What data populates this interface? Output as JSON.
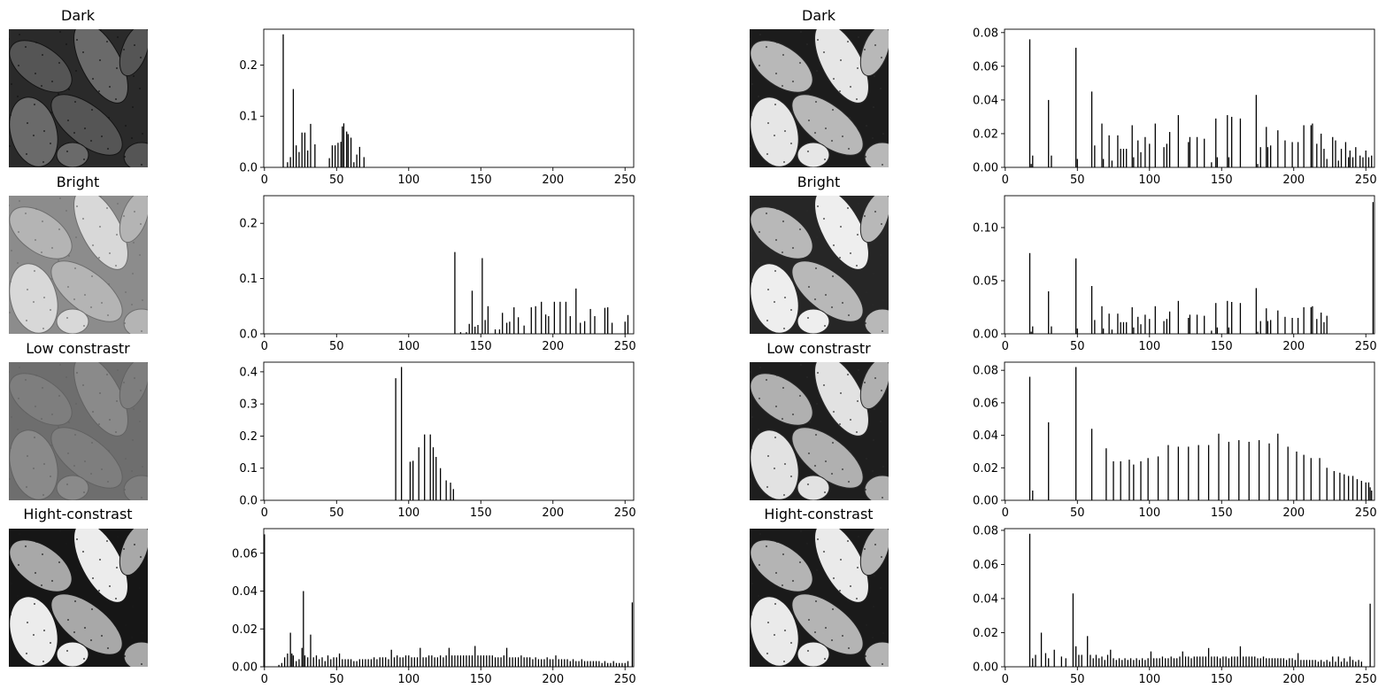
{
  "figure": {
    "row_titles": [
      "Dark",
      "Bright",
      "Low constrastr",
      "Hight-constrast"
    ]
  },
  "panels": [
    {
      "title": "Dark",
      "image": {
        "base": "#2a2a2a",
        "fg": "#555555",
        "hi": "#6a6a6a",
        "dots": "#141414"
      }
    },
    {
      "title": "Dark",
      "image": {
        "base": "#1c1c1c",
        "fg": "#b8b8b8",
        "hi": "#e6e6e6",
        "dots": "#2a2a2a"
      }
    },
    {
      "title": "Bright",
      "image": {
        "base": "#8c8c8c",
        "fg": "#b4b4b4",
        "hi": "#d8d8d8",
        "dots": "#6e6e6e"
      }
    },
    {
      "title": "Bright",
      "image": {
        "base": "#262626",
        "fg": "#b8b8b8",
        "hi": "#eeeeee",
        "dots": "#2a2a2a"
      }
    },
    {
      "title": "Low constrastr",
      "image": {
        "base": "#6e6e6e",
        "fg": "#7e7e7e",
        "hi": "#8a8a8a",
        "dots": "#626262"
      }
    },
    {
      "title": "Low constrastr",
      "image": {
        "base": "#1e1e1e",
        "fg": "#b0b0b0",
        "hi": "#e2e2e2",
        "dots": "#2a2a2a"
      }
    },
    {
      "title": "Hight-constrast",
      "image": {
        "base": "#161616",
        "fg": "#a8a8a8",
        "hi": "#ececec",
        "dots": "#1a1a1a"
      }
    },
    {
      "title": "Hight-constrast",
      "image": {
        "base": "#1a1a1a",
        "fg": "#b4b4b4",
        "hi": "#eaeaea",
        "dots": "#222222"
      }
    }
  ],
  "chart_data": [
    {
      "type": "bar",
      "title": "",
      "xlabel": "",
      "ylabel": "",
      "xlim": [
        0,
        255
      ],
      "ylim": [
        0,
        0.27
      ],
      "xticks": [
        0,
        50,
        100,
        150,
        200,
        250
      ],
      "yticks": [
        0.0,
        0.1,
        0.2
      ],
      "x": [
        13,
        16,
        18,
        20,
        22,
        24,
        26,
        28,
        30,
        32,
        35,
        45,
        47,
        49,
        51,
        53,
        54,
        55,
        57,
        58,
        60,
        62,
        64,
        66,
        69
      ],
      "values": [
        0.26,
        0.01,
        0.02,
        0.153,
        0.043,
        0.03,
        0.068,
        0.068,
        0.033,
        0.085,
        0.045,
        0.018,
        0.043,
        0.043,
        0.048,
        0.05,
        0.08,
        0.086,
        0.07,
        0.065,
        0.058,
        0.01,
        0.025,
        0.04,
        0.02
      ]
    },
    {
      "type": "bar",
      "title": "",
      "xlabel": "",
      "ylabel": "",
      "xlim": [
        0,
        255
      ],
      "ylim": [
        0,
        0.082
      ],
      "xticks": [
        0,
        50,
        100,
        150,
        200,
        250
      ],
      "yticks": [
        0.0,
        0.02,
        0.04,
        0.06,
        0.08
      ],
      "x": [
        17,
        18,
        19,
        30,
        32,
        49,
        50,
        60,
        62,
        67,
        68,
        72,
        74,
        78,
        80,
        82,
        84,
        88,
        89,
        92,
        94,
        97,
        100,
        104,
        110,
        112,
        114,
        120,
        127,
        128,
        133,
        138,
        143,
        146,
        147,
        154,
        155,
        157,
        163,
        174,
        175,
        177,
        181,
        182,
        184,
        189,
        194,
        199,
        203,
        207,
        212,
        213,
        216,
        219,
        221,
        223,
        227,
        229,
        231,
        233,
        236,
        238,
        239,
        241,
        243,
        246,
        248,
        250,
        252,
        254
      ],
      "values": [
        0.076,
        0.002,
        0.007,
        0.04,
        0.007,
        0.071,
        0.005,
        0.045,
        0.013,
        0.026,
        0.005,
        0.019,
        0.004,
        0.019,
        0.011,
        0.011,
        0.011,
        0.025,
        0.006,
        0.016,
        0.009,
        0.018,
        0.014,
        0.026,
        0.012,
        0.014,
        0.021,
        0.031,
        0.015,
        0.018,
        0.018,
        0.017,
        0.003,
        0.029,
        0.006,
        0.031,
        0.006,
        0.03,
        0.029,
        0.043,
        0.002,
        0.012,
        0.024,
        0.012,
        0.013,
        0.022,
        0.016,
        0.015,
        0.015,
        0.025,
        0.025,
        0.026,
        0.014,
        0.02,
        0.011,
        0.005,
        0.018,
        0.016,
        0.004,
        0.011,
        0.015,
        0.006,
        0.01,
        0.006,
        0.012,
        0.007,
        0.006,
        0.01,
        0.006,
        0.007
      ]
    },
    {
      "type": "bar",
      "title": "",
      "xlabel": "",
      "ylabel": "",
      "xlim": [
        0,
        255
      ],
      "ylim": [
        0,
        0.25
      ],
      "xticks": [
        0,
        50,
        100,
        150,
        200,
        250
      ],
      "yticks": [
        0.0,
        0.1,
        0.2
      ],
      "x": [
        132,
        136,
        140,
        142,
        144,
        146,
        148,
        151,
        153,
        155,
        160,
        163,
        165,
        168,
        170,
        173,
        176,
        180,
        185,
        188,
        192,
        195,
        197,
        201,
        205,
        209,
        212,
        216,
        219,
        222,
        226,
        229,
        236,
        238,
        241,
        250,
        252
      ],
      "values": [
        0.148,
        0.003,
        0.003,
        0.018,
        0.078,
        0.013,
        0.016,
        0.137,
        0.025,
        0.05,
        0.008,
        0.008,
        0.038,
        0.02,
        0.022,
        0.048,
        0.03,
        0.015,
        0.048,
        0.05,
        0.058,
        0.035,
        0.032,
        0.058,
        0.058,
        0.058,
        0.032,
        0.082,
        0.02,
        0.023,
        0.045,
        0.032,
        0.047,
        0.048,
        0.02,
        0.022,
        0.034
      ]
    },
    {
      "type": "bar",
      "title": "",
      "xlabel": "",
      "ylabel": "",
      "xlim": [
        0,
        255
      ],
      "ylim": [
        0,
        0.13
      ],
      "xticks": [
        0,
        50,
        100,
        150,
        200,
        250
      ],
      "yticks": [
        0.0,
        0.05,
        0.1
      ],
      "x": [
        17,
        18,
        19,
        30,
        32,
        49,
        50,
        60,
        62,
        67,
        68,
        72,
        74,
        78,
        80,
        82,
        84,
        88,
        89,
        92,
        94,
        97,
        100,
        104,
        110,
        112,
        114,
        120,
        127,
        128,
        133,
        138,
        143,
        146,
        147,
        154,
        155,
        157,
        163,
        174,
        175,
        177,
        181,
        182,
        184,
        189,
        194,
        199,
        203,
        207,
        212,
        213,
        216,
        219,
        221,
        223,
        255
      ],
      "values": [
        0.076,
        0.002,
        0.007,
        0.04,
        0.007,
        0.071,
        0.005,
        0.045,
        0.013,
        0.026,
        0.005,
        0.019,
        0.004,
        0.019,
        0.011,
        0.011,
        0.011,
        0.025,
        0.006,
        0.016,
        0.009,
        0.018,
        0.014,
        0.026,
        0.012,
        0.014,
        0.021,
        0.031,
        0.015,
        0.018,
        0.018,
        0.017,
        0.003,
        0.029,
        0.006,
        0.031,
        0.006,
        0.03,
        0.029,
        0.043,
        0.002,
        0.012,
        0.024,
        0.012,
        0.013,
        0.022,
        0.016,
        0.015,
        0.015,
        0.025,
        0.025,
        0.026,
        0.014,
        0.02,
        0.011,
        0.017,
        0.124
      ]
    },
    {
      "type": "bar",
      "title": "",
      "xlabel": "",
      "ylabel": "",
      "xlim": [
        0,
        255
      ],
      "ylim": [
        0,
        0.43
      ],
      "xticks": [
        0,
        50,
        100,
        150,
        200,
        250
      ],
      "yticks": [
        0.0,
        0.1,
        0.2,
        0.3,
        0.4
      ],
      "x": [
        91,
        95,
        101,
        103,
        107,
        111,
        115,
        117,
        119,
        122,
        126,
        129,
        131
      ],
      "values": [
        0.38,
        0.415,
        0.12,
        0.123,
        0.165,
        0.205,
        0.205,
        0.165,
        0.135,
        0.1,
        0.062,
        0.055,
        0.035
      ]
    },
    {
      "type": "bar",
      "title": "",
      "xlabel": "",
      "ylabel": "",
      "xlim": [
        0,
        255
      ],
      "ylim": [
        0,
        0.085
      ],
      "xticks": [
        0,
        50,
        100,
        150,
        200,
        250
      ],
      "yticks": [
        0.0,
        0.02,
        0.04,
        0.06,
        0.08
      ],
      "x": [
        17,
        19,
        30,
        49,
        60,
        70,
        75,
        80,
        86,
        89,
        94,
        99,
        106,
        113,
        120,
        127,
        134,
        141,
        148,
        155,
        162,
        169,
        176,
        183,
        189,
        196,
        202,
        207,
        212,
        218,
        223,
        228,
        232,
        235,
        238,
        241,
        244,
        247,
        250,
        252,
        253,
        254
      ],
      "values": [
        0.076,
        0.006,
        0.048,
        0.082,
        0.044,
        0.032,
        0.024,
        0.024,
        0.025,
        0.022,
        0.024,
        0.026,
        0.027,
        0.034,
        0.033,
        0.033,
        0.034,
        0.034,
        0.041,
        0.036,
        0.037,
        0.036,
        0.037,
        0.035,
        0.041,
        0.033,
        0.03,
        0.028,
        0.026,
        0.026,
        0.02,
        0.018,
        0.017,
        0.016,
        0.015,
        0.015,
        0.013,
        0.012,
        0.011,
        0.011,
        0.008,
        0.006
      ]
    },
    {
      "type": "bar",
      "title": "",
      "xlabel": "",
      "ylabel": "",
      "xlim": [
        0,
        255
      ],
      "ylim": [
        0,
        0.073
      ],
      "xticks": [
        0,
        50,
        100,
        150,
        200,
        250
      ],
      "yticks": [
        0.0,
        0.02,
        0.04,
        0.06
      ],
      "x": [
        0,
        10,
        12,
        14,
        16,
        18,
        19,
        20,
        22,
        24,
        26,
        27,
        28,
        30,
        32,
        34,
        36,
        38,
        40,
        42,
        44,
        46,
        48,
        50,
        52,
        54,
        56,
        58,
        60,
        62,
        64,
        66,
        68,
        70,
        72,
        74,
        76,
        78,
        80,
        82,
        84,
        86,
        88,
        90,
        92,
        94,
        96,
        98,
        100,
        102,
        104,
        106,
        108,
        110,
        112,
        114,
        116,
        118,
        120,
        122,
        124,
        126,
        128,
        130,
        132,
        134,
        136,
        138,
        140,
        142,
        144,
        146,
        148,
        150,
        152,
        154,
        156,
        158,
        160,
        162,
        164,
        166,
        168,
        170,
        172,
        174,
        176,
        178,
        180,
        182,
        184,
        186,
        188,
        190,
        192,
        194,
        196,
        198,
        200,
        202,
        204,
        206,
        208,
        210,
        212,
        214,
        216,
        218,
        220,
        222,
        224,
        226,
        228,
        230,
        232,
        234,
        236,
        238,
        240,
        242,
        244,
        246,
        248,
        250,
        252,
        255
      ],
      "values": [
        0.07,
        0.001,
        0.002,
        0.005,
        0.007,
        0.018,
        0.007,
        0.006,
        0.003,
        0.004,
        0.01,
        0.04,
        0.006,
        0.005,
        0.017,
        0.005,
        0.006,
        0.004,
        0.005,
        0.003,
        0.006,
        0.004,
        0.005,
        0.005,
        0.007,
        0.004,
        0.004,
        0.004,
        0.004,
        0.003,
        0.003,
        0.004,
        0.004,
        0.004,
        0.004,
        0.004,
        0.005,
        0.004,
        0.005,
        0.005,
        0.005,
        0.004,
        0.009,
        0.005,
        0.006,
        0.005,
        0.005,
        0.006,
        0.006,
        0.005,
        0.005,
        0.005,
        0.01,
        0.005,
        0.005,
        0.006,
        0.006,
        0.005,
        0.005,
        0.006,
        0.005,
        0.006,
        0.01,
        0.006,
        0.006,
        0.006,
        0.006,
        0.006,
        0.006,
        0.006,
        0.006,
        0.011,
        0.006,
        0.006,
        0.006,
        0.006,
        0.006,
        0.006,
        0.005,
        0.005,
        0.005,
        0.006,
        0.01,
        0.005,
        0.005,
        0.005,
        0.005,
        0.006,
        0.005,
        0.005,
        0.005,
        0.004,
        0.005,
        0.004,
        0.004,
        0.004,
        0.005,
        0.004,
        0.004,
        0.006,
        0.004,
        0.004,
        0.004,
        0.004,
        0.003,
        0.004,
        0.003,
        0.003,
        0.004,
        0.003,
        0.003,
        0.003,
        0.003,
        0.003,
        0.003,
        0.002,
        0.003,
        0.002,
        0.002,
        0.003,
        0.002,
        0.002,
        0.002,
        0.002,
        0.003,
        0.034
      ]
    },
    {
      "type": "bar",
      "title": "",
      "xlabel": "",
      "ylabel": "",
      "xlim": [
        0,
        255
      ],
      "ylim": [
        0,
        0.081
      ],
      "xticks": [
        0,
        50,
        100,
        150,
        200,
        250
      ],
      "yticks": [
        0.0,
        0.02,
        0.04,
        0.06,
        0.08
      ],
      "x": [
        17,
        19,
        21,
        25,
        28,
        30,
        34,
        39,
        42,
        47,
        49,
        51,
        53,
        57,
        59,
        61,
        63,
        65,
        67,
        69,
        71,
        73,
        75,
        77,
        79,
        81,
        83,
        85,
        87,
        89,
        91,
        93,
        95,
        97,
        99,
        101,
        103,
        105,
        107,
        109,
        111,
        113,
        115,
        117,
        119,
        121,
        123,
        125,
        127,
        129,
        131,
        133,
        135,
        137,
        139,
        141,
        143,
        145,
        147,
        149,
        151,
        153,
        155,
        157,
        159,
        161,
        163,
        165,
        167,
        169,
        171,
        173,
        175,
        177,
        179,
        181,
        183,
        185,
        187,
        189,
        191,
        193,
        195,
        197,
        199,
        201,
        203,
        205,
        207,
        209,
        211,
        213,
        215,
        217,
        219,
        221,
        223,
        225,
        227,
        229,
        231,
        233,
        235,
        237,
        239,
        241,
        243,
        245,
        247,
        253
      ],
      "values": [
        0.078,
        0.005,
        0.007,
        0.02,
        0.008,
        0.005,
        0.01,
        0.006,
        0.005,
        0.043,
        0.012,
        0.007,
        0.007,
        0.018,
        0.007,
        0.005,
        0.007,
        0.005,
        0.006,
        0.004,
        0.007,
        0.01,
        0.005,
        0.004,
        0.005,
        0.004,
        0.005,
        0.004,
        0.005,
        0.004,
        0.005,
        0.004,
        0.005,
        0.004,
        0.005,
        0.009,
        0.005,
        0.005,
        0.005,
        0.006,
        0.005,
        0.005,
        0.006,
        0.005,
        0.005,
        0.006,
        0.009,
        0.006,
        0.006,
        0.005,
        0.006,
        0.006,
        0.006,
        0.006,
        0.006,
        0.011,
        0.006,
        0.006,
        0.006,
        0.005,
        0.006,
        0.006,
        0.005,
        0.006,
        0.006,
        0.006,
        0.012,
        0.006,
        0.006,
        0.006,
        0.006,
        0.006,
        0.005,
        0.005,
        0.006,
        0.005,
        0.005,
        0.005,
        0.005,
        0.005,
        0.005,
        0.005,
        0.004,
        0.005,
        0.005,
        0.004,
        0.008,
        0.004,
        0.004,
        0.004,
        0.004,
        0.004,
        0.004,
        0.003,
        0.004,
        0.003,
        0.004,
        0.003,
        0.006,
        0.003,
        0.006,
        0.003,
        0.005,
        0.003,
        0.006,
        0.004,
        0.003,
        0.004,
        0.003,
        0.037
      ]
    }
  ]
}
